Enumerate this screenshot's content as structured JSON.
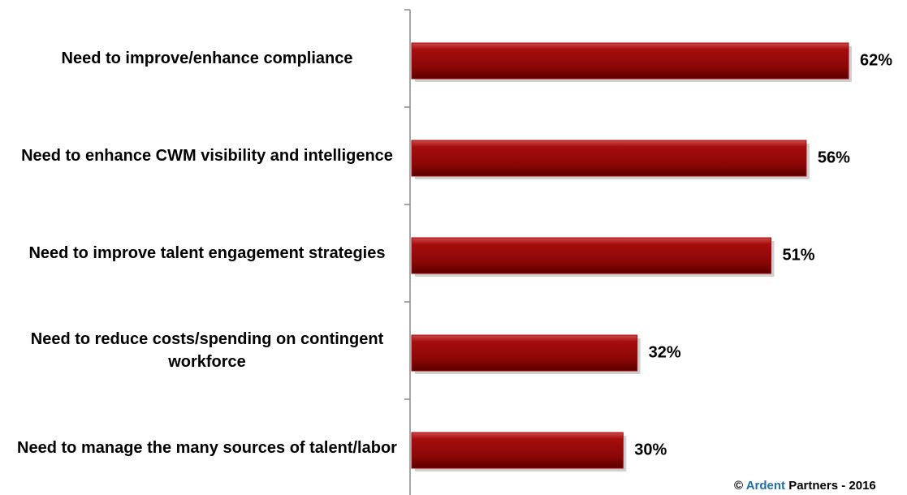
{
  "chart_data": {
    "type": "bar",
    "orientation": "horizontal",
    "categories": [
      "Need to improve/enhance compliance",
      "Need to enhance CWM visibility and intelligence",
      "Need to improve talent engagement strategies",
      "Need to reduce costs/spending on contingent workforce",
      "Need to manage the many sources of talent/labor"
    ],
    "values": [
      62,
      56,
      51,
      32,
      30
    ],
    "value_labels": [
      "62%",
      "56%",
      "51%",
      "32%",
      "30%"
    ],
    "color": "#9c0a0a",
    "xlim": [
      0,
      65
    ],
    "credit": {
      "symbol": "©",
      "brand": "Ardent",
      "rest": "Partners - 2016"
    }
  }
}
